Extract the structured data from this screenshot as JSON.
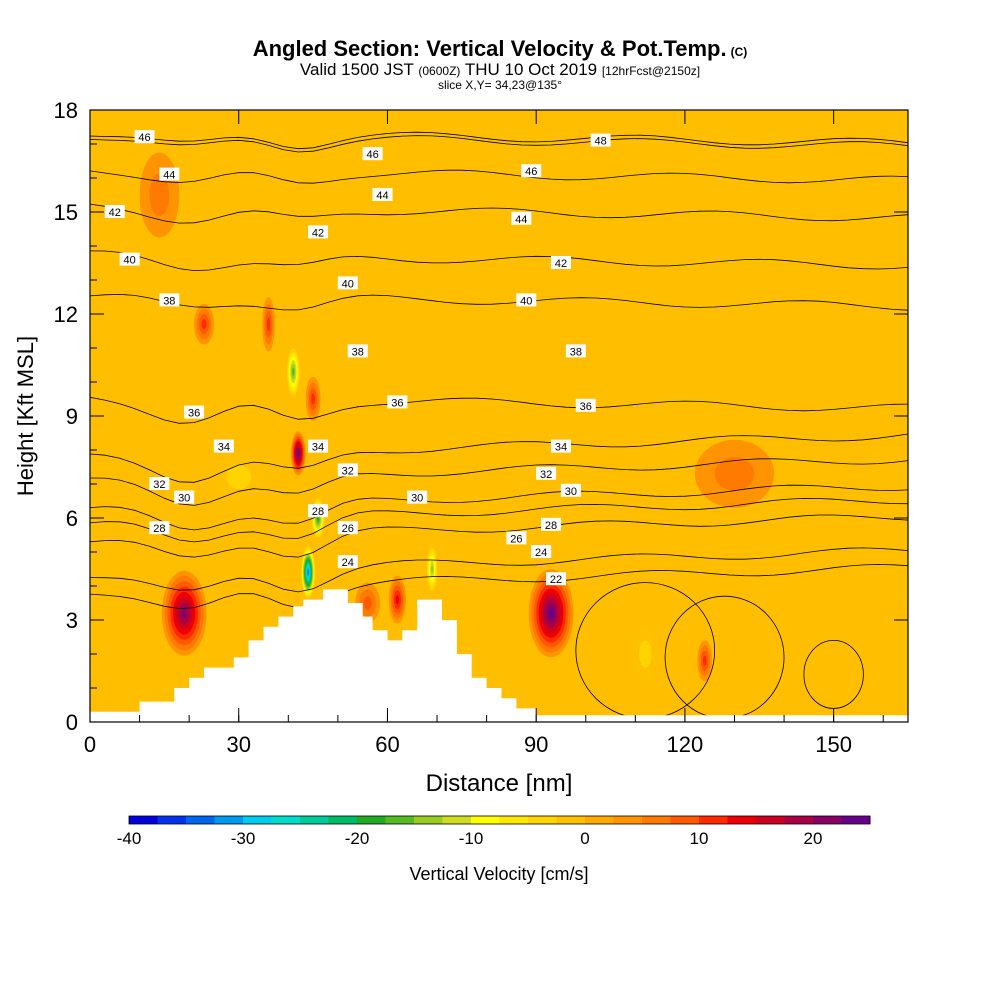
{
  "header": {
    "title": "Angled Section: Vertical Velocity & Pot.Temp.",
    "title_mark": "(C)",
    "valid_main": "Valid 1500 JST",
    "valid_utc": "(0600Z)",
    "valid_date": "THU 10 Oct 2019",
    "forecast": "[12hrFcst@2150z]",
    "slice": "slice X,Y= 34,23@135°"
  },
  "chart_data": {
    "type": "heatmap",
    "xlabel": "Distance [nm]",
    "ylabel": "Height [Kft MSL]",
    "xlim": [
      0,
      165
    ],
    "ylim": [
      0,
      18
    ],
    "xticks": [
      0,
      30,
      60,
      90,
      120,
      150
    ],
    "yticks": [
      0,
      3,
      6,
      9,
      12,
      15,
      18
    ],
    "colorbar": {
      "label": "Vertical Velocity [cm/s]",
      "min": -40,
      "max": 25,
      "step": 2.5,
      "ticks": [
        -40,
        -30,
        -20,
        -10,
        0,
        10,
        20
      ],
      "colors": [
        "#0000dd",
        "#0033ee",
        "#0066ee",
        "#0099ee",
        "#00ccee",
        "#00ddcc",
        "#00cc99",
        "#00bb66",
        "#22aa22",
        "#55bb22",
        "#99cc22",
        "#ccdd22",
        "#ffff00",
        "#ffe800",
        "#ffd400",
        "#ffc000",
        "#ffaa00",
        "#ff9400",
        "#ff7a00",
        "#ff5a00",
        "#ff2a00",
        "#ee0000",
        "#cc0022",
        "#aa0044",
        "#880066",
        "#660088"
      ]
    },
    "terrain": [
      [
        0,
        0.3
      ],
      [
        10,
        0.6
      ],
      [
        17,
        1.0
      ],
      [
        20,
        1.3
      ],
      [
        23,
        1.6
      ],
      [
        29,
        1.9
      ],
      [
        32,
        2.4
      ],
      [
        35,
        2.8
      ],
      [
        38,
        3.1
      ],
      [
        41,
        3.4
      ],
      [
        43,
        3.6
      ],
      [
        47,
        3.9
      ],
      [
        52,
        3.5
      ],
      [
        55,
        3.1
      ],
      [
        57,
        2.7
      ],
      [
        60,
        2.4
      ],
      [
        63,
        2.7
      ],
      [
        66,
        3.6
      ],
      [
        71,
        3.0
      ],
      [
        74,
        2.0
      ],
      [
        77,
        1.3
      ],
      [
        80,
        1.0
      ],
      [
        83,
        0.7
      ],
      [
        86,
        0.4
      ],
      [
        90,
        0.2
      ],
      [
        165,
        0.2
      ]
    ],
    "updrafts": [
      {
        "x": 19,
        "y": 3.2,
        "w": 9,
        "h": 2.5,
        "value": 20
      },
      {
        "x": 42,
        "y": 7.9,
        "w": 3,
        "h": 1.3,
        "value": 22
      },
      {
        "x": 45,
        "y": 9.5,
        "w": 3,
        "h": 1.3,
        "value": 10
      },
      {
        "x": 36,
        "y": 11.7,
        "w": 2.5,
        "h": 1.6,
        "value": 10
      },
      {
        "x": 23,
        "y": 11.7,
        "w": 4,
        "h": 1.2,
        "value": 10
      },
      {
        "x": 62,
        "y": 3.6,
        "w": 3.5,
        "h": 1.4,
        "value": 12
      },
      {
        "x": 56,
        "y": 3.5,
        "w": 5,
        "h": 1.2,
        "value": 8
      },
      {
        "x": 93,
        "y": 3.2,
        "w": 9,
        "h": 2.6,
        "value": 22
      },
      {
        "x": 124,
        "y": 1.8,
        "w": 3,
        "h": 1.2,
        "value": 10
      },
      {
        "x": 14,
        "y": 15.5,
        "w": 8,
        "h": 2.5,
        "value": 5
      },
      {
        "x": 130,
        "y": 7.3,
        "w": 16,
        "h": 2.0,
        "value": 5
      }
    ],
    "downdrafts": [
      {
        "x": 44,
        "y": 4.4,
        "w": 3,
        "h": 1.6,
        "value": -35
      },
      {
        "x": 46,
        "y": 6.0,
        "w": 3,
        "h": 1.3,
        "value": -20
      },
      {
        "x": 41,
        "y": 10.3,
        "w": 3,
        "h": 1.6,
        "value": -18
      },
      {
        "x": 30,
        "y": 7.2,
        "w": 10,
        "h": 1.4,
        "value": -5
      },
      {
        "x": 69,
        "y": 4.5,
        "w": 2.5,
        "h": 1.5,
        "value": -15
      },
      {
        "x": 112,
        "y": 2.0,
        "w": 5,
        "h": 1.6,
        "value": -6
      }
    ],
    "isentrope_labels": [
      {
        "v": "46",
        "x": 11,
        "y": 17.2
      },
      {
        "v": "46",
        "x": 57,
        "y": 16.7
      },
      {
        "v": "48",
        "x": 103,
        "y": 17.1
      },
      {
        "v": "44",
        "x": 16,
        "y": 16.1
      },
      {
        "v": "46",
        "x": 89,
        "y": 16.2
      },
      {
        "v": "44",
        "x": 59,
        "y": 15.5
      },
      {
        "v": "42",
        "x": 5,
        "y": 15.0
      },
      {
        "v": "44",
        "x": 87,
        "y": 14.8
      },
      {
        "v": "42",
        "x": 46,
        "y": 14.4
      },
      {
        "v": "40",
        "x": 8,
        "y": 13.6
      },
      {
        "v": "42",
        "x": 95,
        "y": 13.5
      },
      {
        "v": "40",
        "x": 52,
        "y": 12.9
      },
      {
        "v": "38",
        "x": 16,
        "y": 12.4
      },
      {
        "v": "40",
        "x": 88,
        "y": 12.4
      },
      {
        "v": "38",
        "x": 54,
        "y": 10.9
      },
      {
        "v": "38",
        "x": 98,
        "y": 10.9
      },
      {
        "v": "36",
        "x": 62,
        "y": 9.4
      },
      {
        "v": "36",
        "x": 100,
        "y": 9.3
      },
      {
        "v": "36",
        "x": 21,
        "y": 9.1
      },
      {
        "v": "34",
        "x": 27,
        "y": 8.1
      },
      {
        "v": "34",
        "x": 46,
        "y": 8.1
      },
      {
        "v": "34",
        "x": 95,
        "y": 8.1
      },
      {
        "v": "32",
        "x": 52,
        "y": 7.4
      },
      {
        "v": "32",
        "x": 92,
        "y": 7.3
      },
      {
        "v": "32",
        "x": 14,
        "y": 7.0
      },
      {
        "v": "30",
        "x": 19,
        "y": 6.6
      },
      {
        "v": "30",
        "x": 66,
        "y": 6.6
      },
      {
        "v": "30",
        "x": 97,
        "y": 6.8
      },
      {
        "v": "28",
        "x": 46,
        "y": 6.2
      },
      {
        "v": "28",
        "x": 93,
        "y": 5.8
      },
      {
        "v": "26",
        "x": 52,
        "y": 5.7
      },
      {
        "v": "26",
        "x": 86,
        "y": 5.4
      },
      {
        "v": "28",
        "x": 14,
        "y": 5.7
      },
      {
        "v": "24",
        "x": 52,
        "y": 4.7
      },
      {
        "v": "24",
        "x": 91,
        "y": 5.0
      },
      {
        "v": "22",
        "x": 94,
        "y": 4.2
      }
    ]
  }
}
